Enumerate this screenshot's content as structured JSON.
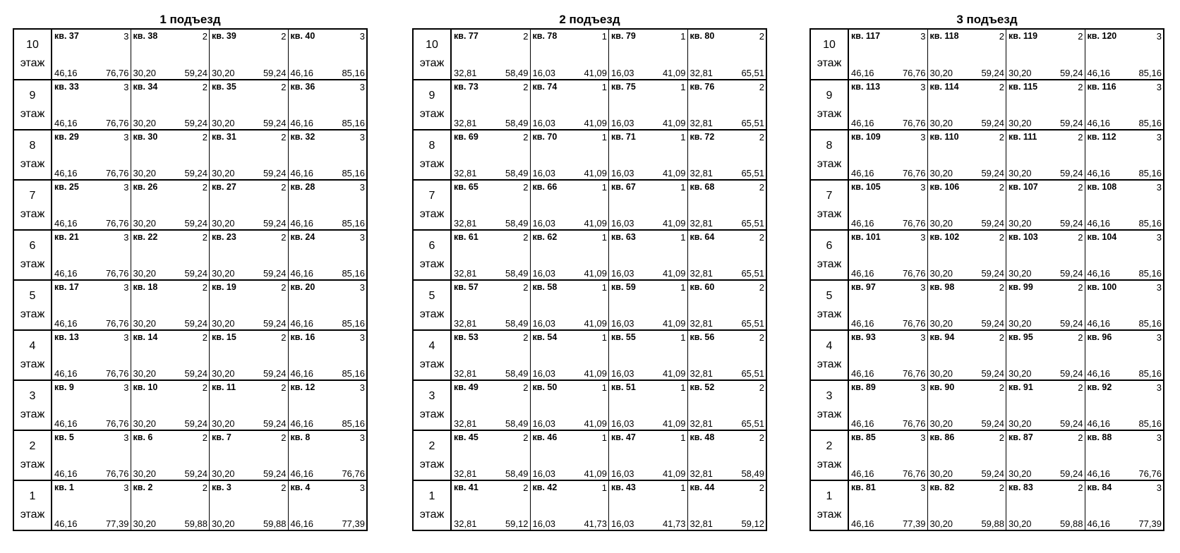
{
  "entrances": [
    {
      "title": "1 подъезд",
      "floors": [
        {
          "number": "10",
          "label": "этаж",
          "apartments": [
            {
              "n": "кв. 37",
              "r": "3",
              "a": "46,16",
              "t": "76,76"
            },
            {
              "n": "кв. 38",
              "r": "2",
              "a": "30,20",
              "t": "59,24"
            },
            {
              "n": "кв. 39",
              "r": "2",
              "a": "30,20",
              "t": "59,24"
            },
            {
              "n": "кв. 40",
              "r": "3",
              "a": "46,16",
              "t": "85,16"
            }
          ]
        },
        {
          "number": "9",
          "label": "этаж",
          "apartments": [
            {
              "n": "кв. 33",
              "r": "3",
              "a": "46,16",
              "t": "76,76"
            },
            {
              "n": "кв. 34",
              "r": "2",
              "a": "30,20",
              "t": "59,24"
            },
            {
              "n": "кв. 35",
              "r": "2",
              "a": "30,20",
              "t": "59,24"
            },
            {
              "n": "кв. 36",
              "r": "3",
              "a": "46,16",
              "t": "85,16"
            }
          ]
        },
        {
          "number": "8",
          "label": "этаж",
          "apartments": [
            {
              "n": "кв. 29",
              "r": "3",
              "a": "46,16",
              "t": "76,76"
            },
            {
              "n": "кв. 30",
              "r": "2",
              "a": "30,20",
              "t": "59,24"
            },
            {
              "n": "кв. 31",
              "r": "2",
              "a": "30,20",
              "t": "59,24"
            },
            {
              "n": "кв. 32",
              "r": "3",
              "a": "46,16",
              "t": "85,16"
            }
          ]
        },
        {
          "number": "7",
          "label": "этаж",
          "apartments": [
            {
              "n": "кв. 25",
              "r": "3",
              "a": "46,16",
              "t": "76,76"
            },
            {
              "n": "кв. 26",
              "r": "2",
              "a": "30,20",
              "t": "59,24"
            },
            {
              "n": "кв. 27",
              "r": "2",
              "a": "30,20",
              "t": "59,24"
            },
            {
              "n": "кв. 28",
              "r": "3",
              "a": "46,16",
              "t": "85,16"
            }
          ]
        },
        {
          "number": "6",
          "label": "этаж",
          "apartments": [
            {
              "n": "кв. 21",
              "r": "3",
              "a": "46,16",
              "t": "76,76"
            },
            {
              "n": "кв. 22",
              "r": "2",
              "a": "30,20",
              "t": "59,24"
            },
            {
              "n": "кв. 23",
              "r": "2",
              "a": "30,20",
              "t": "59,24"
            },
            {
              "n": "кв. 24",
              "r": "3",
              "a": "46,16",
              "t": "85,16"
            }
          ]
        },
        {
          "number": "5",
          "label": "этаж",
          "apartments": [
            {
              "n": "кв. 17",
              "r": "3",
              "a": "46,16",
              "t": "76,76"
            },
            {
              "n": "кв. 18",
              "r": "2",
              "a": "30,20",
              "t": "59,24"
            },
            {
              "n": "кв. 19",
              "r": "2",
              "a": "30,20",
              "t": "59,24"
            },
            {
              "n": "кв. 20",
              "r": "3",
              "a": "46,16",
              "t": "85,16"
            }
          ]
        },
        {
          "number": "4",
          "label": "этаж",
          "apartments": [
            {
              "n": "кв. 13",
              "r": "3",
              "a": "46,16",
              "t": "76,76"
            },
            {
              "n": "кв. 14",
              "r": "2",
              "a": "30,20",
              "t": "59,24"
            },
            {
              "n": "кв. 15",
              "r": "2",
              "a": "30,20",
              "t": "59,24"
            },
            {
              "n": "кв. 16",
              "r": "3",
              "a": "46,16",
              "t": "85,16"
            }
          ]
        },
        {
          "number": "3",
          "label": "этаж",
          "apartments": [
            {
              "n": "кв. 9",
              "r": "3",
              "a": "46,16",
              "t": "76,76"
            },
            {
              "n": "кв. 10",
              "r": "2",
              "a": "30,20",
              "t": "59,24"
            },
            {
              "n": "кв. 11",
              "r": "2",
              "a": "30,20",
              "t": "59,24"
            },
            {
              "n": "кв. 12",
              "r": "3",
              "a": "46,16",
              "t": "85,16"
            }
          ]
        },
        {
          "number": "2",
          "label": "этаж",
          "apartments": [
            {
              "n": "кв. 5",
              "r": "3",
              "a": "46,16",
              "t": "76,76"
            },
            {
              "n": "кв. 6",
              "r": "2",
              "a": "30,20",
              "t": "59,24"
            },
            {
              "n": "кв. 7",
              "r": "2",
              "a": "30,20",
              "t": "59,24"
            },
            {
              "n": "кв. 8",
              "r": "3",
              "a": "46,16",
              "t": "76,76"
            }
          ]
        },
        {
          "number": "1",
          "label": "этаж",
          "apartments": [
            {
              "n": "кв. 1",
              "r": "3",
              "a": "46,16",
              "t": "77,39"
            },
            {
              "n": "кв. 2",
              "r": "2",
              "a": "30,20",
              "t": "59,88"
            },
            {
              "n": "кв. 3",
              "r": "2",
              "a": "30,20",
              "t": "59,88"
            },
            {
              "n": "кв. 4",
              "r": "3",
              "a": "46,16",
              "t": "77,39"
            }
          ]
        }
      ]
    },
    {
      "title": "2 подъезд",
      "floors": [
        {
          "number": "10",
          "label": "этаж",
          "apartments": [
            {
              "n": "кв. 77",
              "r": "2",
              "a": "32,81",
              "t": "58,49"
            },
            {
              "n": "кв. 78",
              "r": "1",
              "a": "16,03",
              "t": "41,09"
            },
            {
              "n": "кв. 79",
              "r": "1",
              "a": "16,03",
              "t": "41,09"
            },
            {
              "n": "кв. 80",
              "r": "2",
              "a": "32,81",
              "t": "65,51"
            }
          ]
        },
        {
          "number": "9",
          "label": "этаж",
          "apartments": [
            {
              "n": "кв. 73",
              "r": "2",
              "a": "32,81",
              "t": "58,49"
            },
            {
              "n": "кв. 74",
              "r": "1",
              "a": "16,03",
              "t": "41,09"
            },
            {
              "n": "кв. 75",
              "r": "1",
              "a": "16,03",
              "t": "41,09"
            },
            {
              "n": "кв. 76",
              "r": "2",
              "a": "32,81",
              "t": "65,51"
            }
          ]
        },
        {
          "number": "8",
          "label": "этаж",
          "apartments": [
            {
              "n": "кв. 69",
              "r": "2",
              "a": "32,81",
              "t": "58,49"
            },
            {
              "n": "кв. 70",
              "r": "1",
              "a": "16,03",
              "t": "41,09"
            },
            {
              "n": "кв. 71",
              "r": "1",
              "a": "16,03",
              "t": "41,09"
            },
            {
              "n": "кв. 72",
              "r": "2",
              "a": "32,81",
              "t": "65,51"
            }
          ]
        },
        {
          "number": "7",
          "label": "этаж",
          "apartments": [
            {
              "n": "кв. 65",
              "r": "2",
              "a": "32,81",
              "t": "58,49"
            },
            {
              "n": "кв. 66",
              "r": "1",
              "a": "16,03",
              "t": "41,09"
            },
            {
              "n": "кв. 67",
              "r": "1",
              "a": "16,03",
              "t": "41,09"
            },
            {
              "n": "кв. 68",
              "r": "2",
              "a": "32,81",
              "t": "65,51"
            }
          ]
        },
        {
          "number": "6",
          "label": "этаж",
          "apartments": [
            {
              "n": "кв. 61",
              "r": "2",
              "a": "32,81",
              "t": "58,49"
            },
            {
              "n": "кв. 62",
              "r": "1",
              "a": "16,03",
              "t": "41,09"
            },
            {
              "n": "кв. 63",
              "r": "1",
              "a": "16,03",
              "t": "41,09"
            },
            {
              "n": "кв. 64",
              "r": "2",
              "a": "32,81",
              "t": "65,51"
            }
          ]
        },
        {
          "number": "5",
          "label": "этаж",
          "apartments": [
            {
              "n": "кв. 57",
              "r": "2",
              "a": "32,81",
              "t": "58,49"
            },
            {
              "n": "кв. 58",
              "r": "1",
              "a": "16,03",
              "t": "41,09"
            },
            {
              "n": "кв. 59",
              "r": "1",
              "a": "16,03",
              "t": "41,09"
            },
            {
              "n": "кв. 60",
              "r": "2",
              "a": "32,81",
              "t": "65,51"
            }
          ]
        },
        {
          "number": "4",
          "label": "этаж",
          "apartments": [
            {
              "n": "кв. 53",
              "r": "2",
              "a": "32,81",
              "t": "58,49"
            },
            {
              "n": "кв. 54",
              "r": "1",
              "a": "16,03",
              "t": "41,09"
            },
            {
              "n": "кв. 55",
              "r": "1",
              "a": "16,03",
              "t": "41,09"
            },
            {
              "n": "кв. 56",
              "r": "2",
              "a": "32,81",
              "t": "65,51"
            }
          ]
        },
        {
          "number": "3",
          "label": "этаж",
          "apartments": [
            {
              "n": "кв. 49",
              "r": "2",
              "a": "32,81",
              "t": "58,49"
            },
            {
              "n": "кв. 50",
              "r": "1",
              "a": "16,03",
              "t": "41,09"
            },
            {
              "n": "кв. 51",
              "r": "1",
              "a": "16,03",
              "t": "41,09"
            },
            {
              "n": "кв. 52",
              "r": "2",
              "a": "32,81",
              "t": "65,51"
            }
          ]
        },
        {
          "number": "2",
          "label": "этаж",
          "apartments": [
            {
              "n": "кв. 45",
              "r": "2",
              "a": "32,81",
              "t": "58,49"
            },
            {
              "n": "кв. 46",
              "r": "1",
              "a": "16,03",
              "t": "41,09"
            },
            {
              "n": "кв. 47",
              "r": "1",
              "a": "16,03",
              "t": "41,09"
            },
            {
              "n": "кв. 48",
              "r": "2",
              "a": "32,81",
              "t": "58,49"
            }
          ]
        },
        {
          "number": "1",
          "label": "этаж",
          "apartments": [
            {
              "n": "кв. 41",
              "r": "2",
              "a": "32,81",
              "t": "59,12"
            },
            {
              "n": "кв. 42",
              "r": "1",
              "a": "16,03",
              "t": "41,73"
            },
            {
              "n": "кв. 43",
              "r": "1",
              "a": "16,03",
              "t": "41,73"
            },
            {
              "n": "кв. 44",
              "r": "2",
              "a": "32,81",
              "t": "59,12"
            }
          ]
        }
      ]
    },
    {
      "title": "3 подъезд",
      "floors": [
        {
          "number": "10",
          "label": "этаж",
          "apartments": [
            {
              "n": "кв. 117",
              "r": "3",
              "a": "46,16",
              "t": "76,76"
            },
            {
              "n": "кв. 118",
              "r": "2",
              "a": "30,20",
              "t": "59,24"
            },
            {
              "n": "кв. 119",
              "r": "2",
              "a": "30,20",
              "t": "59,24"
            },
            {
              "n": "кв. 120",
              "r": "3",
              "a": "46,16",
              "t": "85,16"
            }
          ]
        },
        {
          "number": "9",
          "label": "этаж",
          "apartments": [
            {
              "n": "кв. 113",
              "r": "3",
              "a": "46,16",
              "t": "76,76"
            },
            {
              "n": "кв. 114",
              "r": "2",
              "a": "30,20",
              "t": "59,24"
            },
            {
              "n": "кв. 115",
              "r": "2",
              "a": "30,20",
              "t": "59,24"
            },
            {
              "n": "кв. 116",
              "r": "3",
              "a": "46,16",
              "t": "85,16"
            }
          ]
        },
        {
          "number": "8",
          "label": "этаж",
          "apartments": [
            {
              "n": "кв. 109",
              "r": "3",
              "a": "46,16",
              "t": "76,76"
            },
            {
              "n": "кв. 110",
              "r": "2",
              "a": "30,20",
              "t": "59,24"
            },
            {
              "n": "кв. 111",
              "r": "2",
              "a": "30,20",
              "t": "59,24"
            },
            {
              "n": "кв. 112",
              "r": "3",
              "a": "46,16",
              "t": "85,16"
            }
          ]
        },
        {
          "number": "7",
          "label": "этаж",
          "apartments": [
            {
              "n": "кв. 105",
              "r": "3",
              "a": "46,16",
              "t": "76,76"
            },
            {
              "n": "кв. 106",
              "r": "2",
              "a": "30,20",
              "t": "59,24"
            },
            {
              "n": "кв. 107",
              "r": "2",
              "a": "30,20",
              "t": "59,24"
            },
            {
              "n": "кв. 108",
              "r": "3",
              "a": "46,16",
              "t": "85,16"
            }
          ]
        },
        {
          "number": "6",
          "label": "этаж",
          "apartments": [
            {
              "n": "кв. 101",
              "r": "3",
              "a": "46,16",
              "t": "76,76"
            },
            {
              "n": "кв. 102",
              "r": "2",
              "a": "30,20",
              "t": "59,24"
            },
            {
              "n": "кв. 103",
              "r": "2",
              "a": "30,20",
              "t": "59,24"
            },
            {
              "n": "кв. 104",
              "r": "3",
              "a": "46,16",
              "t": "85,16"
            }
          ]
        },
        {
          "number": "5",
          "label": "этаж",
          "apartments": [
            {
              "n": "кв. 97",
              "r": "3",
              "a": "46,16",
              "t": "76,76"
            },
            {
              "n": "кв. 98",
              "r": "2",
              "a": "30,20",
              "t": "59,24"
            },
            {
              "n": "кв. 99",
              "r": "2",
              "a": "30,20",
              "t": "59,24"
            },
            {
              "n": "кв. 100",
              "r": "3",
              "a": "46,16",
              "t": "85,16"
            }
          ]
        },
        {
          "number": "4",
          "label": "этаж",
          "apartments": [
            {
              "n": "кв. 93",
              "r": "3",
              "a": "46,16",
              "t": "76,76"
            },
            {
              "n": "кв. 94",
              "r": "2",
              "a": "30,20",
              "t": "59,24"
            },
            {
              "n": "кв. 95",
              "r": "2",
              "a": "30,20",
              "t": "59,24"
            },
            {
              "n": "кв. 96",
              "r": "3",
              "a": "46,16",
              "t": "85,16"
            }
          ]
        },
        {
          "number": "3",
          "label": "этаж",
          "apartments": [
            {
              "n": "кв. 89",
              "r": "3",
              "a": "46,16",
              "t": "76,76"
            },
            {
              "n": "кв. 90",
              "r": "2",
              "a": "30,20",
              "t": "59,24"
            },
            {
              "n": "кв. 91",
              "r": "2",
              "a": "30,20",
              "t": "59,24"
            },
            {
              "n": "кв. 92",
              "r": "3",
              "a": "46,16",
              "t": "85,16"
            }
          ]
        },
        {
          "number": "2",
          "label": "этаж",
          "apartments": [
            {
              "n": "кв. 85",
              "r": "3",
              "a": "46,16",
              "t": "76,76"
            },
            {
              "n": "кв. 86",
              "r": "2",
              "a": "30,20",
              "t": "59,24"
            },
            {
              "n": "кв. 87",
              "r": "2",
              "a": "30,20",
              "t": "59,24"
            },
            {
              "n": "кв. 88",
              "r": "3",
              "a": "46,16",
              "t": "76,76"
            }
          ]
        },
        {
          "number": "1",
          "label": "этаж",
          "apartments": [
            {
              "n": "кв. 81",
              "r": "3",
              "a": "46,16",
              "t": "77,39"
            },
            {
              "n": "кв. 82",
              "r": "2",
              "a": "30,20",
              "t": "59,88"
            },
            {
              "n": "кв. 83",
              "r": "2",
              "a": "30,20",
              "t": "59,88"
            },
            {
              "n": "кв. 84",
              "r": "3",
              "a": "46,16",
              "t": "77,39"
            }
          ]
        }
      ]
    }
  ]
}
